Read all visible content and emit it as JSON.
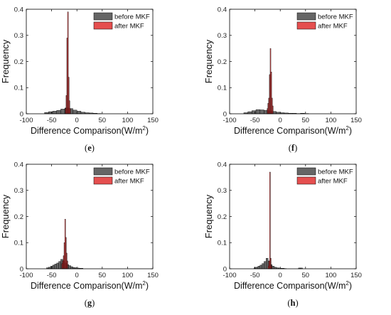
{
  "chart_data": [
    {
      "type": "bar",
      "panel_label": "e",
      "xlabel": "Difference Comparison(W/m",
      "xlabel_sup": "2",
      "xlabel_close": ")",
      "ylabel": "Frequency",
      "xlim": [
        -100,
        150
      ],
      "ylim": [
        0,
        0.4
      ],
      "xticks": [
        -100,
        -50,
        0,
        50,
        100,
        150
      ],
      "yticks": [
        0,
        0.1,
        0.2,
        0.3,
        0.4
      ],
      "legend": "top-right",
      "series": [
        {
          "name": "before MKF",
          "color": "#555555",
          "bin_width": 8,
          "bins": [
            [
              -64,
              0.005
            ],
            [
              -56,
              0.008
            ],
            [
              -48,
              0.01
            ],
            [
              -40,
              0.013
            ],
            [
              -32,
              0.018
            ],
            [
              -24,
              0.022
            ],
            [
              -16,
              0.02
            ],
            [
              -8,
              0.014
            ],
            [
              0,
              0.01
            ],
            [
              8,
              0.006
            ],
            [
              16,
              0.004
            ],
            [
              24,
              0.003
            ],
            [
              32,
              0.002
            ],
            [
              40,
              0.001
            ]
          ]
        },
        {
          "name": "after MKF",
          "color": "#e03030",
          "bin_width": 1.5,
          "bins": [
            [
              -23,
              0.02
            ],
            [
              -21.5,
              0.07
            ],
            [
              -20,
              0.29
            ],
            [
              -18.5,
              0.39
            ],
            [
              -17,
              0.14
            ],
            [
              -15.5,
              0.05
            ],
            [
              -14,
              0.02
            ]
          ]
        }
      ]
    },
    {
      "type": "bar",
      "panel_label": "f",
      "xlabel": "Difference Comparison(W/m",
      "xlabel_sup": "2",
      "xlabel_close": ")",
      "ylabel": "Frequency",
      "xlim": [
        -100,
        150
      ],
      "ylim": [
        0,
        0.4
      ],
      "xticks": [
        -100,
        -50,
        0,
        50,
        100,
        150
      ],
      "yticks": [
        0,
        0.1,
        0.2,
        0.3,
        0.4
      ],
      "legend": "top-right",
      "series": [
        {
          "name": "before MKF",
          "color": "#555555",
          "bin_width": 8,
          "bins": [
            [
              -72,
              0.004
            ],
            [
              -64,
              0.008
            ],
            [
              -56,
              0.012
            ],
            [
              -48,
              0.016
            ],
            [
              -40,
              0.015
            ],
            [
              -32,
              0.013
            ],
            [
              -24,
              0.011
            ],
            [
              -16,
              0.009
            ],
            [
              -8,
              0.006
            ],
            [
              0,
              0.004
            ],
            [
              8,
              0.003
            ],
            [
              16,
              0.002
            ],
            [
              24,
              0.002
            ],
            [
              32,
              0.001
            ],
            [
              40,
              0.002
            ],
            [
              48,
              0.001
            ]
          ]
        },
        {
          "name": "after MKF",
          "color": "#e03030",
          "bin_width": 1.5,
          "bins": [
            [
              -26,
              0.02
            ],
            [
              -24.5,
              0.04
            ],
            [
              -23,
              0.06
            ],
            [
              -21.5,
              0.15
            ],
            [
              -20,
              0.25
            ],
            [
              -18.5,
              0.16
            ],
            [
              -17,
              0.06
            ],
            [
              -15.5,
              0.03
            ]
          ]
        }
      ]
    },
    {
      "type": "bar",
      "panel_label": "g",
      "xlabel": "Difference Comparison(W/m",
      "xlabel_sup": "2",
      "xlabel_close": ")",
      "ylabel": "Frequency",
      "xlim": [
        -100,
        150
      ],
      "ylim": [
        0,
        0.4
      ],
      "xticks": [
        -100,
        -50,
        0,
        50,
        100,
        150
      ],
      "yticks": [
        0,
        0.1,
        0.2,
        0.3,
        0.4
      ],
      "legend": "top-right",
      "series": [
        {
          "name": "before MKF",
          "color": "#555555",
          "bin_width": 4,
          "bins": [
            [
              -60,
              0.004
            ],
            [
              -56,
              0.006
            ],
            [
              -52,
              0.01
            ],
            [
              -48,
              0.014
            ],
            [
              -44,
              0.018
            ],
            [
              -40,
              0.022
            ],
            [
              -36,
              0.028
            ],
            [
              -32,
              0.036
            ],
            [
              -28,
              0.03
            ],
            [
              -24,
              0.022
            ],
            [
              -20,
              0.016
            ],
            [
              -16,
              0.012
            ],
            [
              -12,
              0.008
            ],
            [
              -8,
              0.005
            ],
            [
              -4,
              0.004
            ],
            [
              0,
              0.003
            ],
            [
              4,
              0.002
            ],
            [
              8,
              0.002
            ]
          ]
        },
        {
          "name": "after MKF",
          "color": "#e03030",
          "bin_width": 1.5,
          "bins": [
            [
              -30,
              0.02
            ],
            [
              -28.5,
              0.03
            ],
            [
              -27,
              0.05
            ],
            [
              -25.5,
              0.1
            ],
            [
              -24,
              0.19
            ],
            [
              -22.5,
              0.12
            ],
            [
              -21,
              0.06
            ],
            [
              -19.5,
              0.03
            ]
          ]
        }
      ]
    },
    {
      "type": "bar",
      "panel_label": "h",
      "xlabel": "Difference Comparison(W/m",
      "xlabel_sup": "2",
      "xlabel_close": ")",
      "ylabel": "Frequency",
      "xlim": [
        -100,
        150
      ],
      "ylim": [
        0,
        0.4
      ],
      "xticks": [
        -100,
        -50,
        0,
        50,
        100,
        150
      ],
      "yticks": [
        0,
        0.1,
        0.2,
        0.3,
        0.4
      ],
      "legend": "top-right",
      "series": [
        {
          "name": "before MKF",
          "color": "#555555",
          "bin_width": 4,
          "bins": [
            [
              -52,
              0.004
            ],
            [
              -48,
              0.006
            ],
            [
              -44,
              0.01
            ],
            [
              -40,
              0.014
            ],
            [
              -36,
              0.02
            ],
            [
              -32,
              0.028
            ],
            [
              -28,
              0.04
            ],
            [
              -24,
              0.03
            ],
            [
              -20,
              0.016
            ],
            [
              -16,
              0.01
            ],
            [
              -12,
              0.006
            ],
            [
              -8,
              0.004
            ],
            [
              -4,
              0.003
            ],
            [
              0,
              0.002
            ],
            [
              4,
              0.002
            ],
            [
              8,
              0.001
            ],
            [
              36,
              0.003
            ],
            [
              40,
              0.003
            ]
          ]
        },
        {
          "name": "after MKF",
          "color": "#e03030",
          "bin_width": 1.5,
          "bins": [
            [
              -24,
              0.01
            ],
            [
              -22.5,
              0.03
            ],
            [
              -21,
              0.37
            ],
            [
              -19.5,
              0.04
            ],
            [
              -18,
              0.01
            ]
          ]
        }
      ]
    }
  ]
}
